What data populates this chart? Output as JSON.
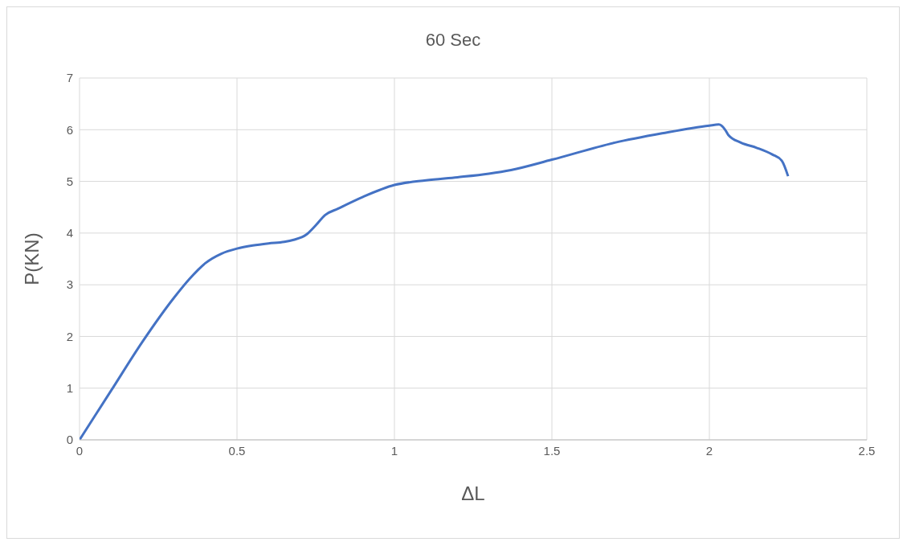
{
  "chart_data": {
    "type": "line",
    "title": "60 Sec",
    "xlabel": "ΔL",
    "ylabel": "P(KN)",
    "series": [
      {
        "color": "#4472c4",
        "x": [
          0,
          0.1,
          0.2,
          0.3,
          0.35,
          0.4,
          0.45,
          0.5,
          0.55,
          0.6,
          0.65,
          0.68,
          0.72,
          0.75,
          0.78,
          0.82,
          0.9,
          1.0,
          1.1,
          1.2,
          1.3,
          1.37,
          1.5,
          1.7,
          1.85,
          2.0,
          2.03,
          2.05,
          2.06,
          2.1,
          2.15,
          2.2,
          2.23,
          2.25
        ],
        "values": [
          0,
          0.95,
          1.9,
          2.75,
          3.12,
          3.42,
          3.6,
          3.7,
          3.76,
          3.8,
          3.83,
          3.87,
          3.97,
          4.15,
          4.35,
          4.47,
          4.7,
          4.93,
          5.02,
          5.08,
          5.15,
          5.22,
          5.42,
          5.75,
          5.93,
          6.08,
          6.1,
          6.0,
          5.9,
          5.75,
          5.65,
          5.52,
          5.4,
          5.1
        ]
      }
    ],
    "xlim": [
      0,
      2.5
    ],
    "xticks": [
      0,
      0.5,
      1,
      1.5,
      2,
      2.5
    ],
    "ylim": [
      0,
      7
    ],
    "yticks": [
      0,
      1,
      2,
      3,
      4,
      5,
      6,
      7
    ],
    "grid": true,
    "marker": "none",
    "line_style": "solid"
  }
}
